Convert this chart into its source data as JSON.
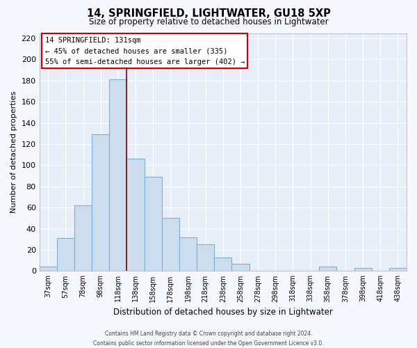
{
  "title1": "14, SPRINGFIELD, LIGHTWATER, GU18 5XP",
  "title2": "Size of property relative to detached houses in Lightwater",
  "xlabel": "Distribution of detached houses by size in Lightwater",
  "ylabel": "Number of detached properties",
  "bar_labels": [
    "37sqm",
    "57sqm",
    "78sqm",
    "98sqm",
    "118sqm",
    "138sqm",
    "158sqm",
    "178sqm",
    "198sqm",
    "218sqm",
    "238sqm",
    "258sqm",
    "278sqm",
    "298sqm",
    "318sqm",
    "338sqm",
    "358sqm",
    "378sqm",
    "398sqm",
    "418sqm",
    "438sqm"
  ],
  "bar_heights": [
    4,
    31,
    62,
    129,
    181,
    106,
    89,
    50,
    32,
    25,
    13,
    7,
    0,
    0,
    0,
    0,
    4,
    0,
    3,
    0,
    3
  ],
  "bar_color": "#ccddf0",
  "bar_edge_color": "#7aafd4",
  "vline_color": "#8b0000",
  "vline_position": 4.5,
  "ylim": [
    0,
    225
  ],
  "yticks": [
    0,
    20,
    40,
    60,
    80,
    100,
    120,
    140,
    160,
    180,
    200,
    220
  ],
  "annotation_title": "14 SPRINGFIELD: 131sqm",
  "annotation_line1": "← 45% of detached houses are smaller (335)",
  "annotation_line2": "55% of semi-detached houses are larger (402) →",
  "annotation_box_color": "#ffffff",
  "annotation_box_edge": "#cc0000",
  "footer1": "Contains HM Land Registry data © Crown copyright and database right 2024.",
  "footer2": "Contains public sector information licensed under the Open Government Licence v3.0.",
  "plot_bg_color": "#e8eef8",
  "fig_bg_color": "#f5f7fc",
  "grid_color": "#ffffff",
  "spine_color": "#aaaaaa"
}
